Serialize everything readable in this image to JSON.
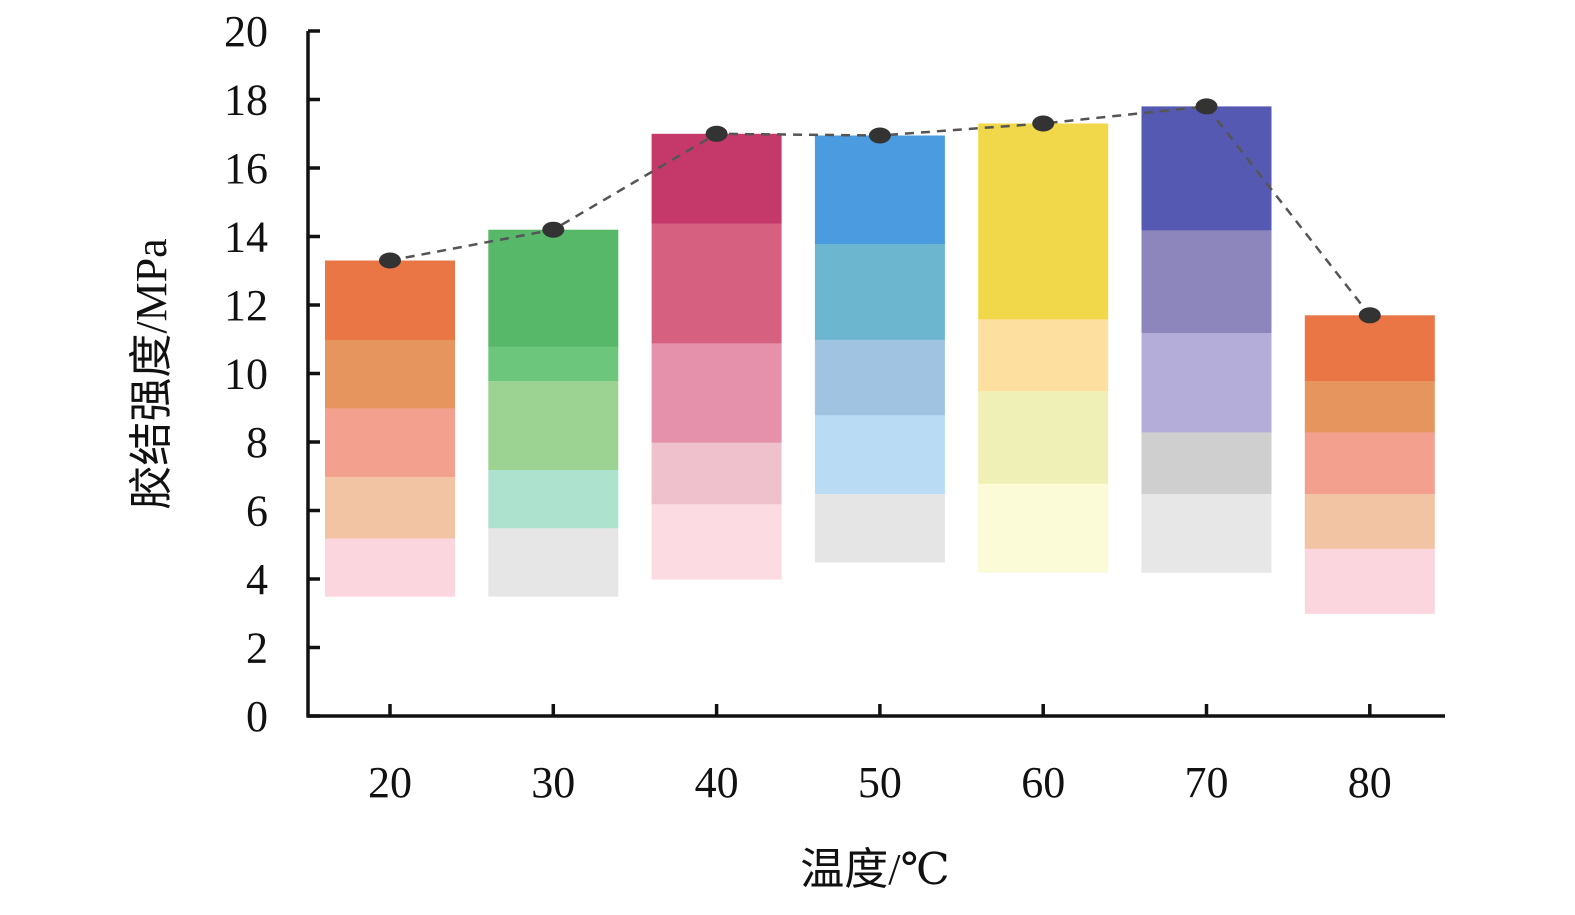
{
  "chart_data": {
    "type": "bar",
    "categories": [
      "20",
      "30",
      "40",
      "50",
      "60",
      "70",
      "80"
    ],
    "values": [
      13.3,
      14.2,
      17.0,
      16.95,
      17.3,
      17.8,
      11.7
    ],
    "xlabel": "温度/℃",
    "ylabel": "胶结强度/MPa",
    "ylim": [
      0,
      20
    ],
    "yticks": [
      "0",
      "2",
      "4",
      "6",
      "8",
      "10",
      "12",
      "14",
      "16",
      "18",
      "20"
    ],
    "grid": false,
    "legend": "none",
    "overlay": {
      "type": "line",
      "style": "dashed",
      "values_same_as_bars": true
    },
    "bar_colors": [
      {
        "base": 3.5,
        "bands": [
          {
            "from": 3.5,
            "to": 5.2,
            "color": "#fcd6df"
          },
          {
            "from": 5.2,
            "to": 7.0,
            "color": "#f3c4a3"
          },
          {
            "from": 7.0,
            "to": 9.0,
            "color": "#f3a08f"
          },
          {
            "from": 9.0,
            "to": 11.0,
            "color": "#e6955f"
          },
          {
            "from": 11.0,
            "to": 13.3,
            "color": "#ea7645"
          }
        ]
      },
      {
        "base": 3.5,
        "bands": [
          {
            "from": 3.5,
            "to": 5.5,
            "color": "#e6e6e6"
          },
          {
            "from": 5.5,
            "to": 7.2,
            "color": "#ade2cf"
          },
          {
            "from": 7.2,
            "to": 9.8,
            "color": "#9dd392"
          },
          {
            "from": 9.8,
            "to": 10.8,
            "color": "#6cc77c"
          },
          {
            "from": 10.8,
            "to": 14.2,
            "color": "#58b86a"
          }
        ]
      },
      {
        "base": 4.0,
        "bands": [
          {
            "from": 4.0,
            "to": 6.2,
            "color": "#fcdbe3"
          },
          {
            "from": 6.2,
            "to": 8.0,
            "color": "#eec1cc"
          },
          {
            "from": 8.0,
            "to": 10.9,
            "color": "#e591ab"
          },
          {
            "from": 10.9,
            "to": 14.4,
            "color": "#d6607f"
          },
          {
            "from": 14.4,
            "to": 17.0,
            "color": "#c5396a"
          }
        ]
      },
      {
        "base": 4.5,
        "bands": [
          {
            "from": 4.5,
            "to": 6.5,
            "color": "#e5e5e5"
          },
          {
            "from": 6.5,
            "to": 8.8,
            "color": "#b9dcf4"
          },
          {
            "from": 8.8,
            "to": 11.0,
            "color": "#9fc3e0"
          },
          {
            "from": 11.0,
            "to": 13.8,
            "color": "#6cb7cf"
          },
          {
            "from": 13.8,
            "to": 16.95,
            "color": "#4a9be0"
          }
        ]
      },
      {
        "base": 4.2,
        "bands": [
          {
            "from": 4.2,
            "to": 6.8,
            "color": "#fbfbd8"
          },
          {
            "from": 6.8,
            "to": 9.5,
            "color": "#eff0b5"
          },
          {
            "from": 9.5,
            "to": 11.6,
            "color": "#fde0a0"
          },
          {
            "from": 11.6,
            "to": 17.3,
            "color": "#f0d84a"
          }
        ]
      },
      {
        "base": 4.2,
        "bands": [
          {
            "from": 4.2,
            "to": 6.5,
            "color": "#e7e7e7"
          },
          {
            "from": 6.5,
            "to": 8.3,
            "color": "#cfcfcf"
          },
          {
            "from": 8.3,
            "to": 11.2,
            "color": "#b4acd9"
          },
          {
            "from": 11.2,
            "to": 14.2,
            "color": "#8d86bd"
          },
          {
            "from": 14.2,
            "to": 17.8,
            "color": "#5559b2"
          }
        ]
      },
      {
        "base": 3.0,
        "bands": [
          {
            "from": 3.0,
            "to": 4.9,
            "color": "#fcd6df"
          },
          {
            "from": 4.9,
            "to": 6.5,
            "color": "#f3c4a3"
          },
          {
            "from": 6.5,
            "to": 8.3,
            "color": "#f3a08f"
          },
          {
            "from": 8.3,
            "to": 9.8,
            "color": "#e6955f"
          },
          {
            "from": 9.8,
            "to": 11.7,
            "color": "#ea7645"
          }
        ]
      }
    ],
    "line_color": "#555555",
    "marker_color": "#333333"
  }
}
